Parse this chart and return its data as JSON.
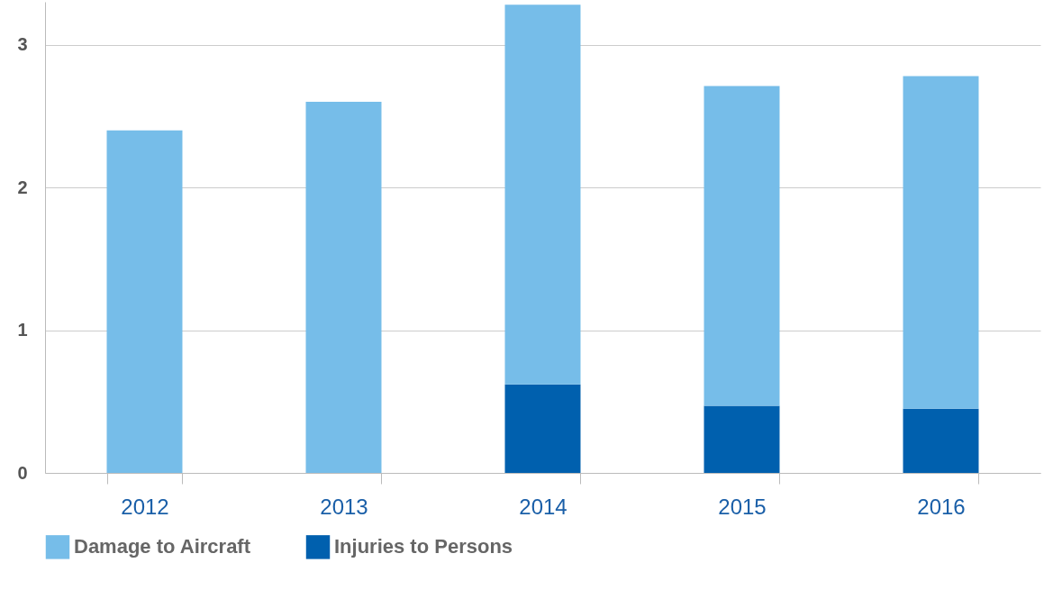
{
  "chart_data": {
    "type": "bar",
    "stacked": true,
    "categories": [
      "2012",
      "2013",
      "2014",
      "2015",
      "2016"
    ],
    "series": [
      {
        "name": "Injuries to Persons",
        "color": "#0060ae",
        "values": [
          0,
          0,
          0.62,
          0.47,
          0.45
        ]
      },
      {
        "name": "Damage to Aircraft",
        "color": "#76bde9",
        "values": [
          2.4,
          2.6,
          2.66,
          2.24,
          2.33
        ]
      }
    ],
    "ylim": [
      0,
      3.3
    ],
    "yticks": [
      0,
      1,
      2,
      3
    ],
    "grid": "y",
    "legend": "bottom"
  }
}
